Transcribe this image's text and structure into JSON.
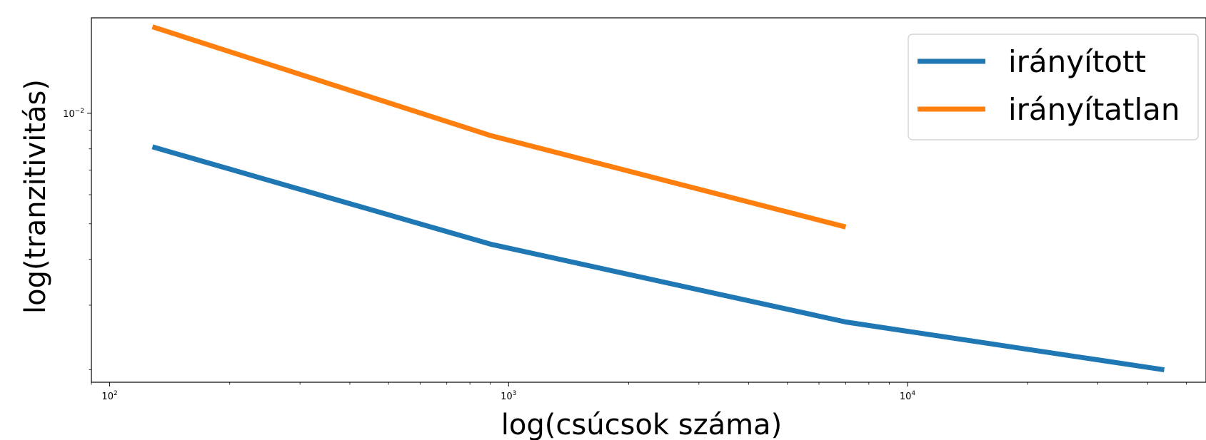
{
  "chart_data": {
    "type": "line",
    "xlabel": "log(csúcsok száma)",
    "ylabel": "log(tranzitivitás)",
    "xscale": "log",
    "yscale": "log",
    "xlim": [
      90,
      56000
    ],
    "ylim": [
      0.00185,
      0.0182
    ],
    "grid": false,
    "legend_position": "top-right",
    "x_ticks": [
      {
        "value": 100,
        "base": "10",
        "exp": "2"
      },
      {
        "value": 1000,
        "base": "10",
        "exp": "3"
      },
      {
        "value": 10000,
        "base": "10",
        "exp": "4"
      }
    ],
    "y_ticks": [
      {
        "value": 0.01,
        "base": "10",
        "exp": "−2"
      }
    ],
    "series": [
      {
        "name": "irányított",
        "color": "#1f77b4",
        "x": [
          128,
          900,
          7000,
          44000
        ],
        "y": [
          0.0081,
          0.0044,
          0.0027,
          0.002
        ]
      },
      {
        "name": "irányítatlan",
        "color": "#ff7f0e",
        "x": [
          128,
          900,
          7000
        ],
        "y": [
          0.0172,
          0.0087,
          0.0049
        ]
      }
    ]
  }
}
